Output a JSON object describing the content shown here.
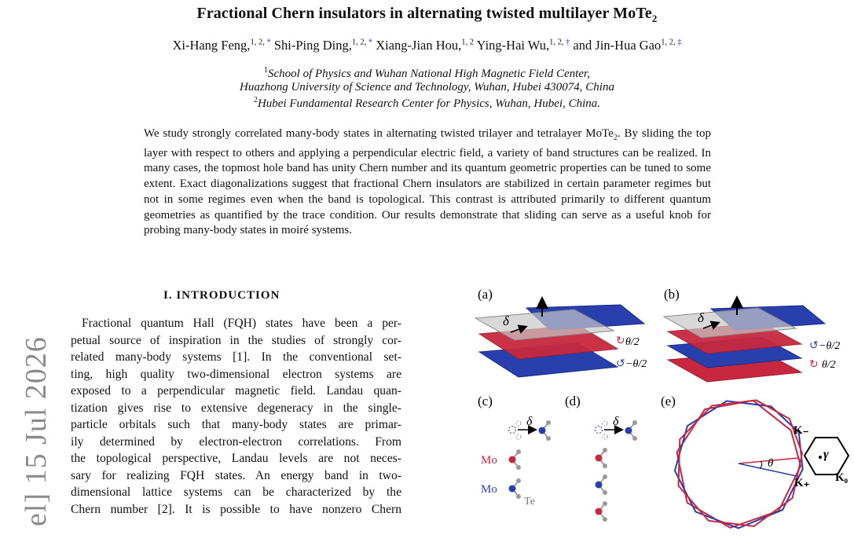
{
  "paper": {
    "title_main": "Fractional Chern insulators in alternating twisted multilayer MoTe",
    "title_sub": "2",
    "authors": [
      {
        "name": "Xi-Hang Feng,",
        "marks": "1, 2, ",
        "note": "*",
        "sep": " "
      },
      {
        "name": "Shi-Ping Ding,",
        "marks": "1, 2, ",
        "note": "*",
        "sep": " "
      },
      {
        "name": "Xiang-Jian Hou,",
        "marks": "1, 2",
        "note": "",
        "sep": " "
      },
      {
        "name": "Ying-Hai Wu,",
        "marks": "1, 2, ",
        "note": "†",
        "sep": " and "
      },
      {
        "name": "Jin-Hua Gao",
        "marks": "1, 2, ",
        "note": "‡",
        "sep": ""
      }
    ],
    "affiliations": [
      {
        "mark": "1",
        "text": "School of Physics and Wuhan National High Magnetic Field Center,"
      },
      {
        "mark": "",
        "text": "Huazhong University of Science and Technology, Wuhan, Hubei 430074, China"
      },
      {
        "mark": "2",
        "text": "Hubei Fundamental Research Center for Physics, Wuhan, Hubei, China."
      }
    ],
    "abstract_part1": "We study strongly correlated many-body states in alternating twisted trilayer and tetralayer MoTe",
    "abstract_sub": "2",
    "abstract_part2": ". By sliding the top layer with respect to others and applying a perpendicular electric field, a variety of band structures can be realized. In many cases, the topmost hole band has unity Chern number and its quantum geometric properties can be tuned to some extent. Exact diagonalizations suggest that fractional Chern insulators are stabilized in certain parameter regimes but not in some regimes even when the band is topological. This contrast is attributed primarily to different quantum geometries as quantified by the trace condition. Our results demonstrate that sliding can serve as a useful knob for probing many-body states in moiré systems.",
    "arxiv_stamp": "el] 15 Jul 2026",
    "section_heading": "I.   INTRODUCTION",
    "intro_lines": [
      "Fractional quantum Hall (FQH) states have been a per-",
      "petual source of inspiration in the studies of strongly cor-",
      "related many-body systems [1]. In the conventional set-",
      "ting, high quality two-dimensional electron systems are",
      "exposed to a perpendicular magnetic field. Landau quan-",
      "tization gives rise to extensive degeneracy in the single-",
      "particle orbitals such that many-body states are primar-",
      "ily determined by electron-electron correlations. From",
      "the topological perspective, Landau levels are not neces-",
      "sary for realizing FQH states. An energy band in two-",
      "dimensional lattice systems can be characterized by the",
      "Chern number [2]. It is possible to have nonzero Chern"
    ]
  },
  "figure": {
    "panels": [
      "(a)",
      "(b)",
      "(c)",
      "(d)",
      "(e)"
    ],
    "delta": "δ",
    "theta_pos": "θ/2",
    "theta_neg": "−θ/2",
    "mo_label": "Mo",
    "te_label": "Te",
    "theta": "θ",
    "k_minus": "K₋",
    "k_plus": "K₊",
    "k_zero": "K₀",
    "gamma": "γ",
    "colors": {
      "red": "#c8283f",
      "blue": "#2a3fae",
      "gray": "#b8b8b8"
    }
  }
}
